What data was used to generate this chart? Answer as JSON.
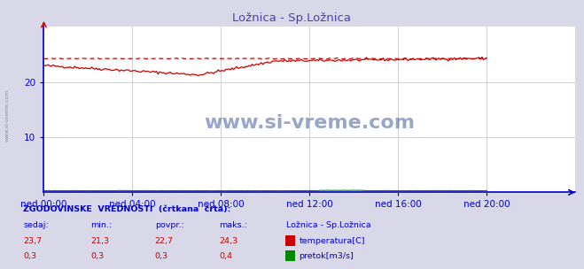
{
  "title": "Ložnica - Sp.Ložnica",
  "title_color": "#4444aa",
  "bg_color": "#d8d8e8",
  "plot_bg_color": "#ffffff",
  "x_labels": [
    "ned 00:00",
    "ned 04:00",
    "ned 08:00",
    "ned 12:00",
    "ned 16:00",
    "ned 20:00"
  ],
  "x_ticks_pos": [
    0,
    72,
    144,
    216,
    288,
    360
  ],
  "x_max": 432,
  "ylim": [
    0,
    30
  ],
  "yticks": [
    10,
    20
  ],
  "ytick_labels": [
    "10",
    "20"
  ],
  "grid_color": "#ffbbbb",
  "axis_color": "#0000cc",
  "temp_color": "#cc0000",
  "flow_color": "#008800",
  "hist_color": "#cc0000",
  "watermark_text": "www.si-vreme.com",
  "watermark_color": "#1a3a8a",
  "footer_title": "ZGODOVINSKE  VREDNOSTI  (črtkana  črta):",
  "footer_color": "#0000cc",
  "col_headers": [
    "sedaj:",
    "min.:",
    "povpr.:",
    "maks.:"
  ],
  "temp_values": [
    "23,7",
    "21,3",
    "22,7",
    "24,3"
  ],
  "flow_values": [
    "0,3",
    "0,3",
    "0,3",
    "0,4"
  ],
  "station_name": "Ložnica - Sp.Ložnica",
  "legend_temp": "temperatura[C]",
  "legend_flow": "pretok[m3/s]"
}
